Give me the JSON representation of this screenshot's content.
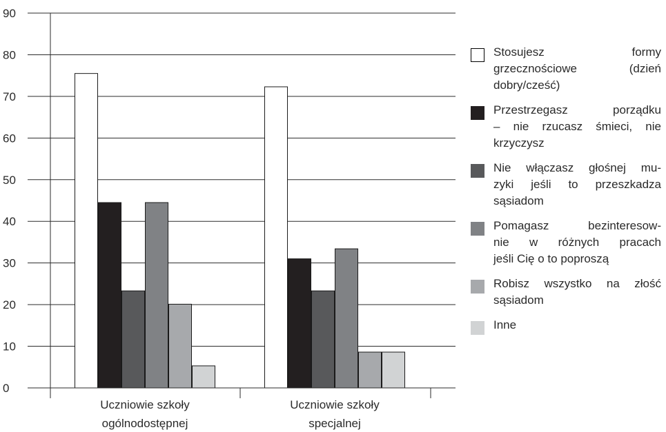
{
  "chart_data": {
    "type": "bar",
    "categories": [
      "Uczniowie szkoły ogólnodostępnej",
      "Uczniowie szkoły specjalnej"
    ],
    "category_lines": [
      [
        "Uczniowie szkoły",
        "ogólnodostępnej"
      ],
      [
        "Uczniowie szkoły",
        "specjalnej"
      ]
    ],
    "series": [
      {
        "name": "Stosujesz formy grzecznościowe (dzień dobry/cześć)",
        "values": [
          75.5,
          72.3
        ],
        "color": "#ffffff"
      },
      {
        "name": "Przestrzegasz porządku – nie rzucasz śmieci, nie krzyczysz",
        "values": [
          44.5,
          31.0
        ],
        "color": "#231f20"
      },
      {
        "name": "Nie włączasz głośnej muzyki jeśli to przeszkadza sąsiadom",
        "values": [
          23.3,
          23.3
        ],
        "color": "#58595b"
      },
      {
        "name": "Pomagasz bezinteresownie w różnych pracach jeśli Cię o to poproszą",
        "values": [
          44.5,
          33.4
        ],
        "color": "#808285"
      },
      {
        "name": "Robisz wszystko na złość sąsiadom",
        "values": [
          20.1,
          8.6
        ],
        "color": "#a7a9ac"
      },
      {
        "name": "Inne",
        "values": [
          5.3,
          8.6
        ],
        "color": "#d1d3d4"
      }
    ],
    "ylim": [
      0,
      90
    ],
    "yticks": [
      "0",
      "10",
      "20",
      "30",
      "40",
      "50",
      "60",
      "70",
      "80",
      "90"
    ],
    "grid": true,
    "legend_position": "right",
    "title": "",
    "xlabel": "",
    "ylabel": ""
  },
  "legend_lines": [
    [
      "Stosujesz formy",
      "grzecznościowe (dzień",
      "dobry/cześć)"
    ],
    [
      "Przestrzegasz porządku",
      "– nie rzucasz śmieci, nie",
      "krzyczysz"
    ],
    [
      "Nie włączasz głośnej mu-",
      "zyki jeśli to przeszkadza",
      "sąsiadom"
    ],
    [
      "Pomagasz bezinteresow-",
      "nie w różnych pracach",
      "jeśli Cię o to poproszą"
    ],
    [
      "Robisz wszystko na złość",
      "sąsiadom"
    ],
    [
      "Inne"
    ]
  ]
}
